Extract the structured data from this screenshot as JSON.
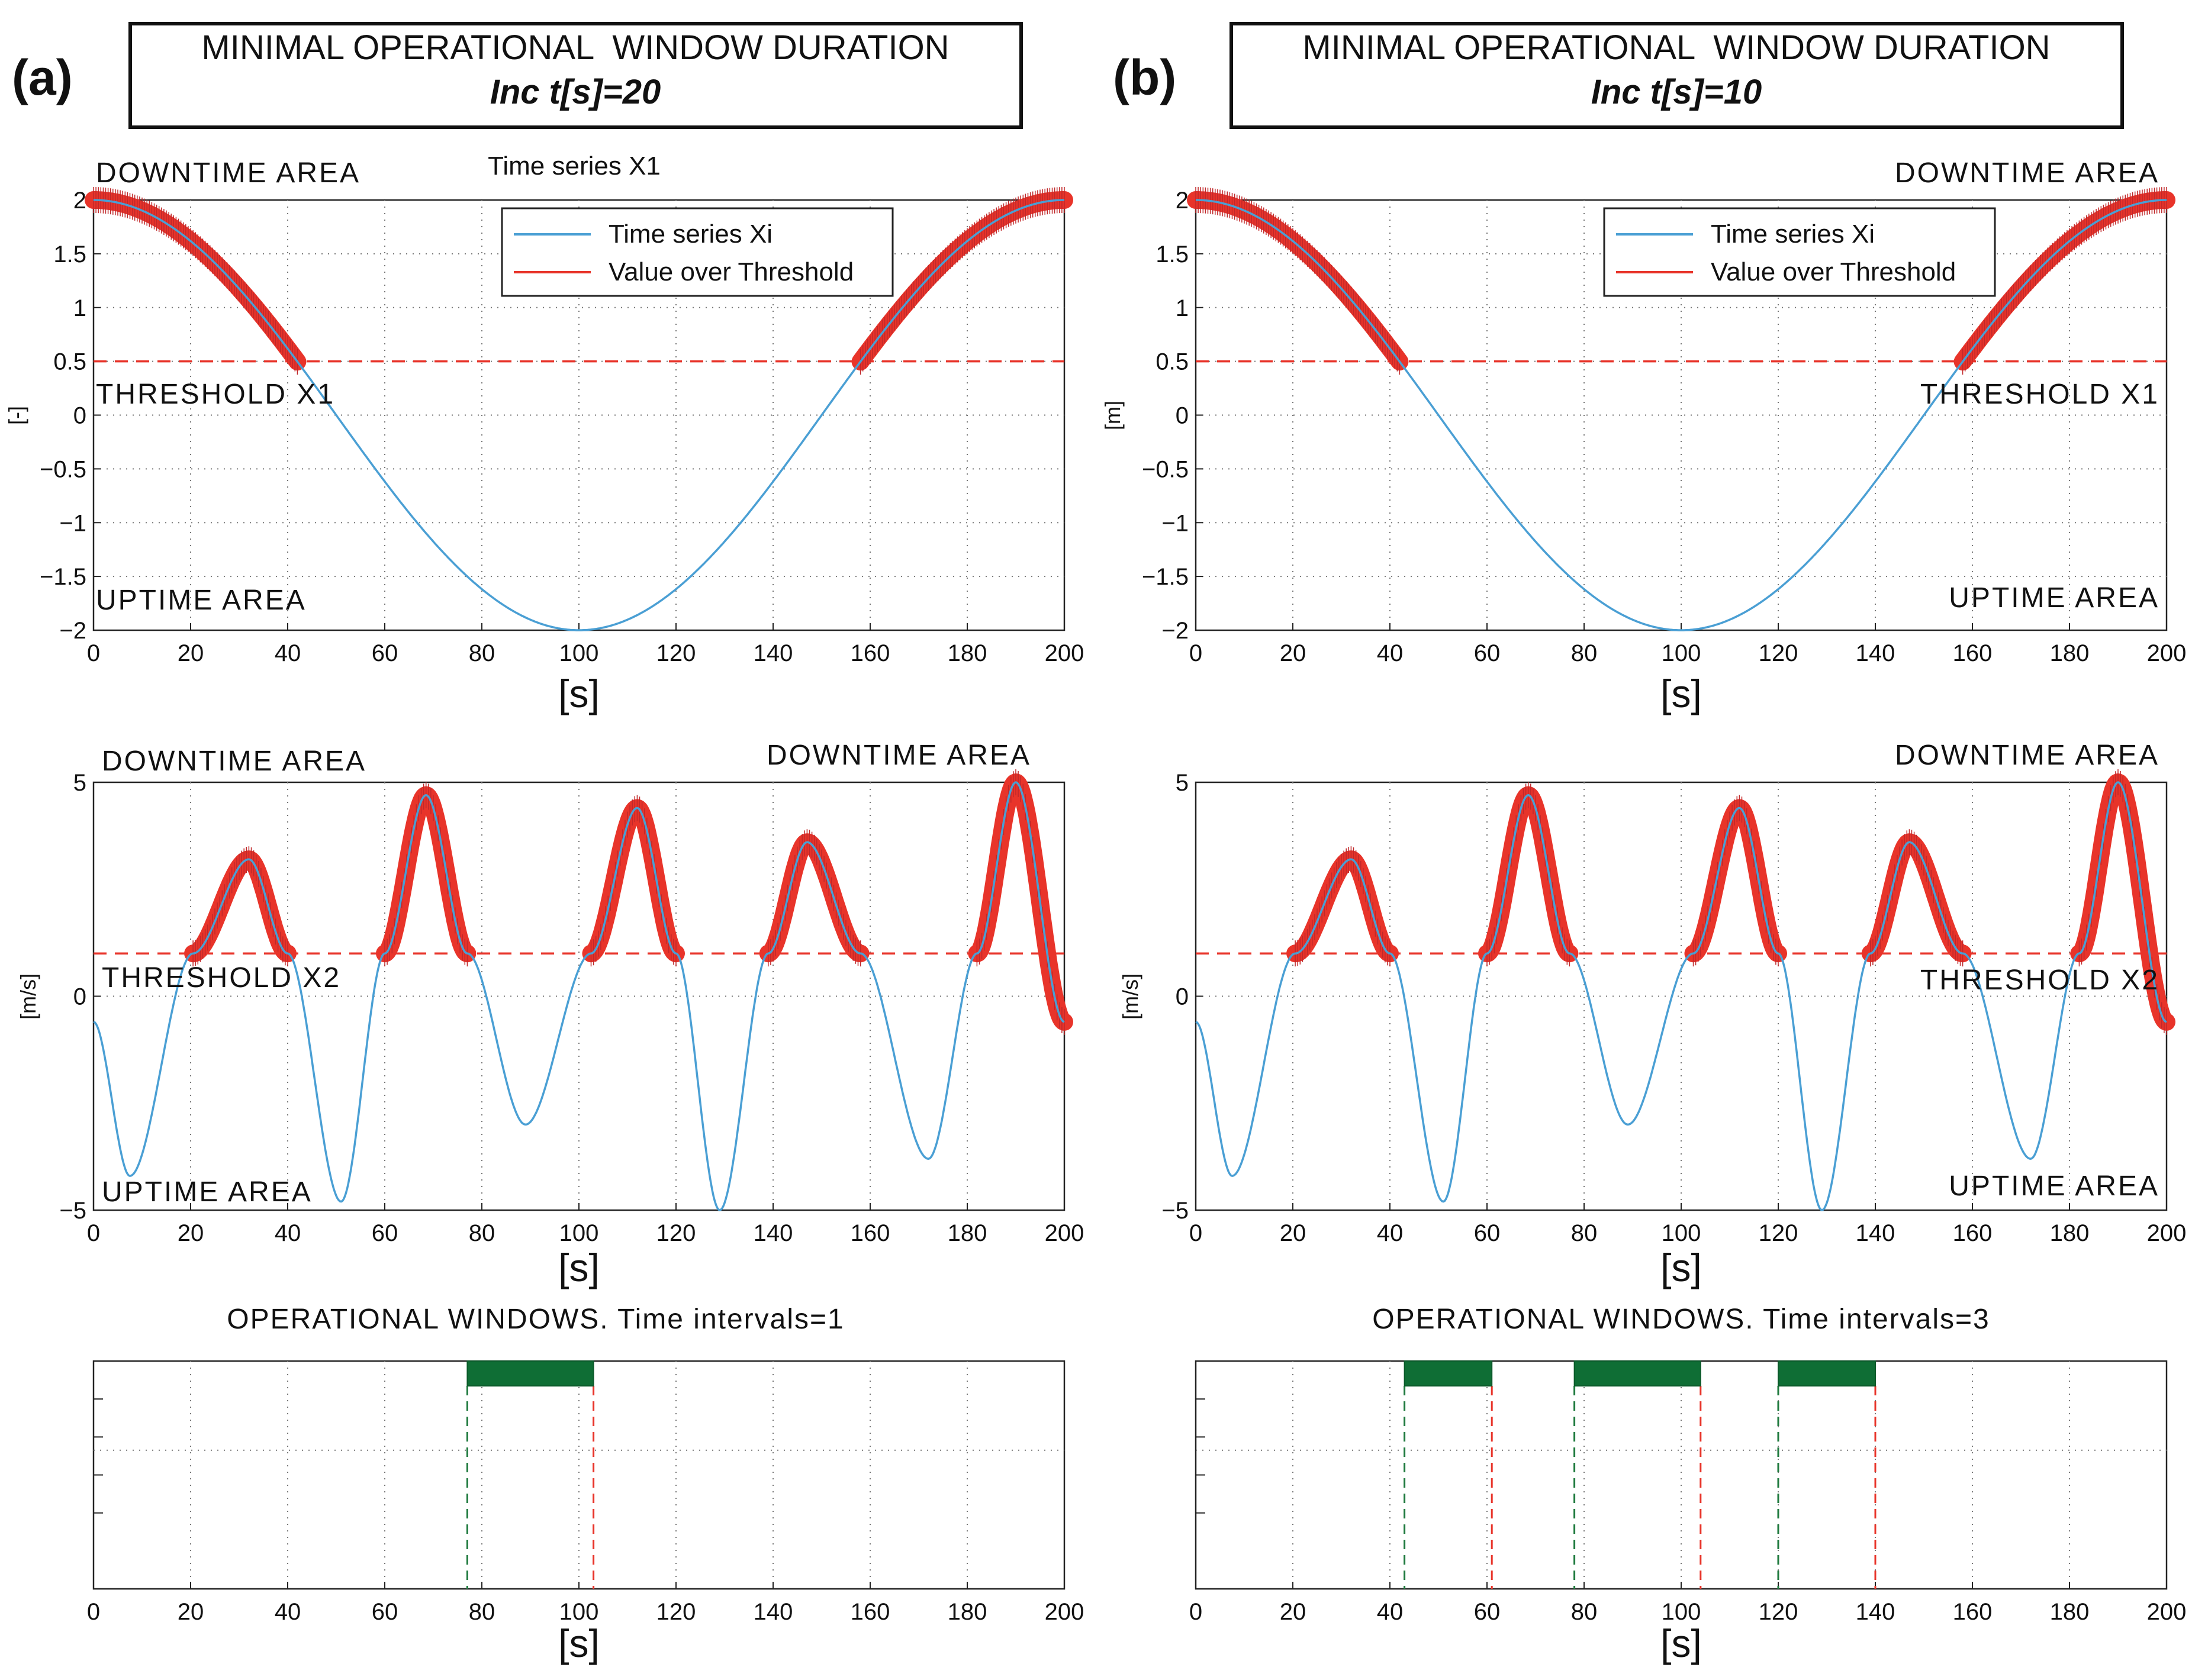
{
  "colors": {
    "series": "#4a9fd4",
    "threshold": "#e8342a",
    "marker": "#e8342a",
    "window": "#0f6e35",
    "window_start": "#1f7a3e",
    "window_end": "#e8342a",
    "grid": "#777777",
    "text": "#111111"
  },
  "panels": [
    {
      "label": "(a)",
      "header": {
        "title": "MINIMAL OPERATIONAL  WINDOW DURATION",
        "subtitle": "Inc t[s]=20"
      },
      "plot1": {
        "title": "Time series X1",
        "ylabel": "[-]",
        "xlabel": "[s]",
        "downtime_label": "DOWNTIME AREA",
        "uptime_label": "UPTIME AREA",
        "threshold_label": "THRESHOLD X1",
        "legend": [
          "Time series Xi",
          "Value over Threshold"
        ],
        "legend_pos": "top-right"
      },
      "plot2": {
        "ylabel": "[m/s]",
        "xlabel": "[s]",
        "downtime_labels": [
          "DOWNTIME AREA",
          "DOWNTIME AREA"
        ],
        "uptime_label": "UPTIME AREA",
        "threshold_label": "THRESHOLD X2"
      },
      "plot3": {
        "title": "OPERATIONAL WINDOWS. Time intervals=1",
        "xlabel": "[s]"
      }
    },
    {
      "label": "(b)",
      "header": {
        "title": "MINIMAL OPERATIONAL  WINDOW DURATION",
        "subtitle": "Inc t[s]=10"
      },
      "plot1": {
        "title": "",
        "ylabel": "[m]",
        "xlabel": "[s]",
        "downtime_label": "DOWNTIME AREA",
        "uptime_label": "UPTIME AREA",
        "threshold_label": "THRESHOLD X1",
        "legend": [
          "Time series Xi",
          "Value over Threshold"
        ],
        "legend_pos": "top-right"
      },
      "plot2": {
        "ylabel": "[m/s]",
        "xlabel": "[s]",
        "downtime_labels": [
          "DOWNTIME AREA"
        ],
        "uptime_label": "UPTIME AREA",
        "threshold_label": "THRESHOLD X2"
      },
      "plot3": {
        "title": "OPERATIONAL WINDOWS. Time intervals=3",
        "xlabel": "[s]"
      }
    }
  ],
  "chart_data": [
    {
      "type": "line",
      "name": "X1 time series",
      "x_range": [
        0,
        200
      ],
      "ylim": [
        -2,
        2
      ],
      "xticks": [
        0,
        20,
        40,
        60,
        80,
        100,
        120,
        140,
        160,
        180,
        200
      ],
      "yticks": [
        2,
        1.5,
        1,
        0.5,
        0,
        -0.5,
        -1,
        -1.5,
        -2
      ],
      "ytick_labels": [
        "2",
        "1.5",
        "1",
        "0.5",
        "0",
        "−0.5",
        "−1",
        "−1.5",
        "−2"
      ],
      "amplitude": 2,
      "period": 200,
      "threshold": 0.5,
      "over_threshold_intervals": [
        [
          0,
          42
        ],
        [
          158,
          200
        ]
      ]
    },
    {
      "type": "line",
      "name": "X2 time series",
      "x_range": [
        0,
        200
      ],
      "ylim": [
        -5,
        5
      ],
      "xticks": [
        0,
        20,
        40,
        60,
        80,
        100,
        120,
        140,
        160,
        180,
        200
      ],
      "yticks": [
        5,
        0,
        -5
      ],
      "ytick_labels": [
        "5",
        "0",
        "−5"
      ],
      "threshold": 1,
      "x": [
        0,
        7.5,
        20.5,
        32,
        40,
        51,
        60,
        68.5,
        77,
        89,
        102.5,
        112,
        120,
        129,
        139,
        147,
        158,
        172,
        182,
        190,
        200
      ],
      "y": [
        -0.6,
        -4.2,
        1,
        3.2,
        1,
        -4.8,
        1,
        4.7,
        1,
        -3,
        1,
        4.4,
        1,
        -5,
        1,
        3.6,
        1,
        -3.8,
        1,
        5,
        -0.6
      ],
      "over_threshold_intervals": [
        [
          20.5,
          40
        ],
        [
          60,
          77
        ],
        [
          102.5,
          120
        ],
        [
          139,
          158
        ],
        [
          182,
          200
        ]
      ]
    },
    {
      "type": "bar",
      "name": "Operational windows (a)",
      "x_range": [
        0,
        200
      ],
      "xticks": [
        0,
        20,
        40,
        60,
        80,
        100,
        120,
        140,
        160,
        180,
        200
      ],
      "windows": [
        [
          77,
          103
        ]
      ]
    },
    {
      "type": "bar",
      "name": "Operational windows (b)",
      "x_range": [
        0,
        200
      ],
      "xticks": [
        0,
        20,
        40,
        60,
        80,
        100,
        120,
        140,
        160,
        180,
        200
      ],
      "windows": [
        [
          43,
          61
        ],
        [
          78,
          104
        ],
        [
          120,
          140
        ]
      ]
    }
  ]
}
